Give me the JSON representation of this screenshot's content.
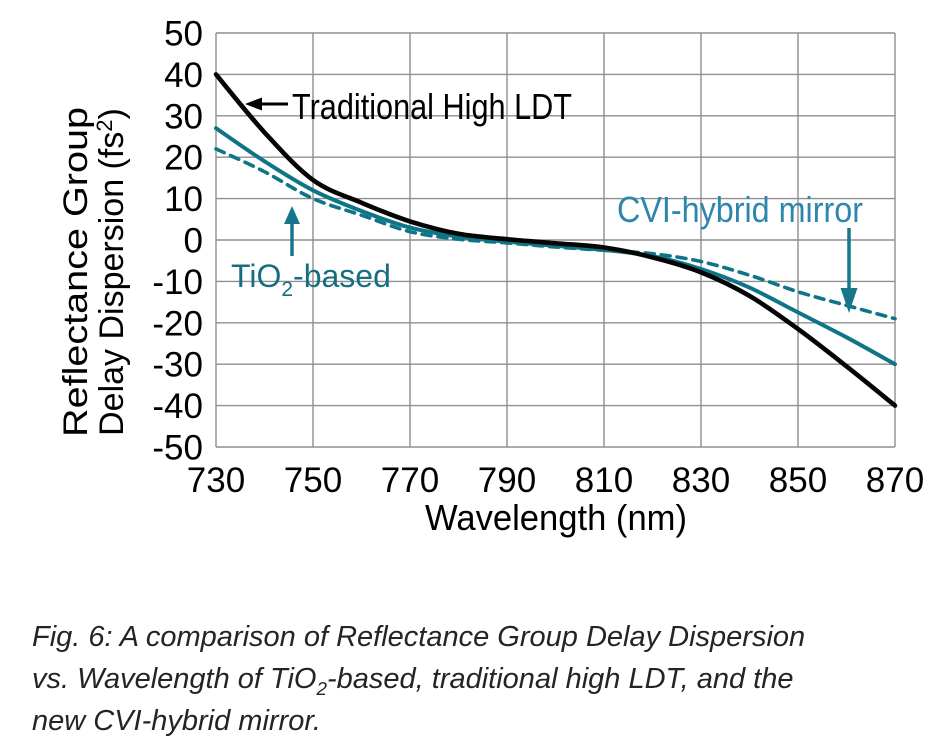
{
  "figure": {
    "y_axis_title": {
      "line1": "Reflectance Group",
      "line2_pre": "Delay Dispersion (fs",
      "line2_sup": "2",
      "line2_post": ")"
    },
    "x_axis_title": "Wavelength (nm)",
    "x_ticks": [
      "730",
      "750",
      "770",
      "790",
      "810",
      "830",
      "850",
      "870"
    ],
    "y_ticks": [
      "50",
      "40",
      "30",
      "20",
      "10",
      "0",
      "-10",
      "-20",
      "-30",
      "-40",
      "-50"
    ]
  },
  "annotations": {
    "traditional": {
      "label": "Traditional High LDT",
      "color": "#000000"
    },
    "tio2": {
      "label_pre": "TiO",
      "label_sub": "2",
      "label_post": "-based",
      "color": "#156f80"
    },
    "cvi": {
      "label": "CVI-hybrid mirror",
      "color": "#2e86ad"
    }
  },
  "caption": {
    "line1": "Fig. 6: A comparison of Reflectance Group Delay Dispersion",
    "line2_pre": "vs. Wavelength of TiO",
    "line2_sub": "2",
    "line2_post": "-based, traditional high LDT, and the",
    "line3": "new CVI-hybrid mirror."
  },
  "colors": {
    "background": "#ffffff",
    "grid": "#8f8f8f",
    "black_curve": "#050505",
    "teal_curve": "#0e7586",
    "arrow_teal": "#17778a",
    "caption_text": "#242424"
  },
  "chart_data": {
    "type": "line",
    "title": "",
    "xlabel": "Wavelength (nm)",
    "ylabel": "Reflectance Group Delay Dispersion (fs²)",
    "xlim": [
      730,
      870
    ],
    "ylim": [
      -50,
      50
    ],
    "x_tick_step": 20,
    "y_tick_step": 10,
    "grid": true,
    "legend_position": "inline-annotations",
    "x": [
      730,
      740,
      750,
      760,
      770,
      780,
      790,
      800,
      810,
      820,
      830,
      840,
      850,
      860,
      870
    ],
    "series": [
      {
        "name": "Traditional High LDT",
        "style": "solid",
        "color": "#050505",
        "values": [
          40,
          26,
          14.5,
          9,
          4.5,
          1.5,
          0.2,
          -0.8,
          -1.8,
          -4.2,
          -7.8,
          -13.5,
          -21.5,
          -30.5,
          -40
        ]
      },
      {
        "name": "CVI-hybrid mirror",
        "style": "solid",
        "color": "#0e7586",
        "values": [
          27,
          19,
          12,
          7,
          3,
          0.8,
          -0.4,
          -1.4,
          -2.4,
          -3.9,
          -7,
          -11.5,
          -17.5,
          -23.5,
          -30
        ]
      },
      {
        "name": "TiO2-based",
        "style": "dashed",
        "color": "#0e7586",
        "values": [
          22,
          16.5,
          10,
          6,
          2,
          0.2,
          -0.7,
          -1.7,
          -2.5,
          -3.3,
          -5.2,
          -8.5,
          -12.5,
          -15.8,
          -19
        ]
      }
    ]
  }
}
